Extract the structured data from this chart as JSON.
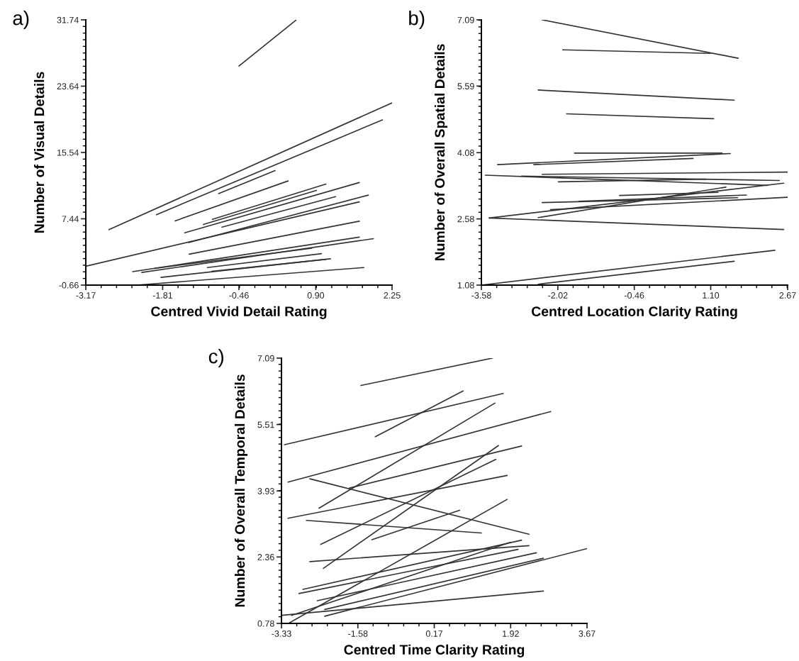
{
  "chart_data": [
    {
      "type": "line",
      "xlabel": "Centred Vivid Detail Rating",
      "ylabel": "Number of Visual Details",
      "annotations": [
        "a)"
      ],
      "color": "#333333",
      "xlim": [
        -3.17,
        2.25
      ],
      "xticks": [
        {
          "value": -3.17,
          "label": "-3.17"
        },
        {
          "value": -1.81,
          "label": "-1.81"
        },
        {
          "value": -0.46,
          "label": "-0.46"
        },
        {
          "value": 0.9,
          "label": "0.90"
        },
        {
          "value": 2.25,
          "label": "2.25"
        }
      ],
      "ylim": [
        -0.66,
        31.74
      ],
      "yticks": [
        {
          "value": -0.66,
          "label": "-0.66"
        },
        {
          "value": 7.44,
          "label": "7.44"
        },
        {
          "value": 15.54,
          "label": "15.54"
        },
        {
          "value": 23.64,
          "label": "23.64"
        },
        {
          "value": 31.74,
          "label": "31.74"
        }
      ],
      "series": [
        {
          "x": [
            -0.46,
            0.55
          ],
          "values": [
            26.1,
            31.7
          ]
        },
        {
          "x": [
            -2.76,
            2.25
          ],
          "values": [
            6.11,
            21.6
          ]
        },
        {
          "x": [
            -1.92,
            2.08
          ],
          "values": [
            7.94,
            19.52
          ]
        },
        {
          "x": [
            -0.82,
            0.18
          ],
          "values": [
            10.52,
            13.32
          ]
        },
        {
          "x": [
            -1.59,
            0.41
          ],
          "values": [
            7.18,
            12.06
          ]
        },
        {
          "x": [
            -0.93,
            1.08
          ],
          "values": [
            7.37,
            11.68
          ]
        },
        {
          "x": [
            -1.09,
            0.91
          ],
          "values": [
            6.74,
            10.9
          ]
        },
        {
          "x": [
            -1.42,
            1.67
          ],
          "values": [
            5.73,
            11.87
          ]
        },
        {
          "x": [
            -0.76,
            1.25
          ],
          "values": [
            6.42,
            10.14
          ]
        },
        {
          "x": [
            -1.35,
            1.83
          ],
          "values": [
            4.54,
            10.33
          ]
        },
        {
          "x": [
            -3.17,
            1.67
          ],
          "values": [
            1.64,
            9.51
          ]
        },
        {
          "x": [
            -1.34,
            1.67
          ],
          "values": [
            3.12,
            7.15
          ]
        },
        {
          "x": [
            -2.34,
            1.67
          ],
          "values": [
            0.98,
            5.2
          ]
        },
        {
          "x": [
            -2.18,
            1.92
          ],
          "values": [
            0.88,
            5.01
          ]
        },
        {
          "x": [
            -1.95,
            0.83
          ],
          "values": [
            1.39,
            3.84
          ]
        },
        {
          "x": [
            -1.02,
            1.0
          ],
          "values": [
            1.48,
            3.18
          ]
        },
        {
          "x": [
            -0.94,
            1.08
          ],
          "values": [
            1.01,
            2.49
          ]
        },
        {
          "x": [
            -1.84,
            1.16
          ],
          "values": [
            0.28,
            2.55
          ]
        },
        {
          "x": [
            -2.27,
            1.75
          ],
          "values": [
            -0.66,
            1.48
          ]
        }
      ]
    },
    {
      "type": "line",
      "xlabel": "Centred Location Clarity Rating",
      "ylabel": "Number of Overall Spatial Details",
      "annotations": [
        "b)"
      ],
      "color": "#333333",
      "xlim": [
        -3.58,
        2.67
      ],
      "xticks": [
        {
          "value": -3.58,
          "label": "-3.58"
        },
        {
          "value": -2.02,
          "label": "-2.02"
        },
        {
          "value": -0.46,
          "label": "-0.46"
        },
        {
          "value": 1.1,
          "label": "1.10"
        },
        {
          "value": 2.67,
          "label": "2.67"
        }
      ],
      "ylim": [
        1.08,
        7.09
      ],
      "yticks": [
        1.08,
        2.58,
        4.08,
        5.59,
        7.09
      ],
      "series": [
        {
          "x": [
            -2.34,
            1.66
          ],
          "values": [
            7.09,
            6.22
          ]
        },
        {
          "x": [
            -1.92,
            1.09
          ],
          "values": [
            6.41,
            6.33
          ]
        },
        {
          "x": [
            -2.42,
            1.58
          ],
          "values": [
            5.5,
            5.27
          ]
        },
        {
          "x": [
            -1.84,
            1.16
          ],
          "values": [
            4.96,
            4.85
          ]
        },
        {
          "x": [
            -1.68,
            1.33
          ],
          "values": [
            4.07,
            4.07
          ]
        },
        {
          "x": [
            -3.25,
            1.5
          ],
          "values": [
            3.81,
            4.06
          ]
        },
        {
          "x": [
            -2.51,
            0.74
          ],
          "values": [
            3.81,
            3.95
          ]
        },
        {
          "x": [
            -3.5,
            2.26
          ],
          "values": [
            3.57,
            3.34
          ]
        },
        {
          "x": [
            -2.34,
            2.67
          ],
          "values": [
            3.59,
            3.64
          ]
        },
        {
          "x": [
            -2.76,
            2.5
          ],
          "values": [
            3.55,
            3.45
          ]
        },
        {
          "x": [
            -2.01,
            1.0
          ],
          "values": [
            3.42,
            3.48
          ]
        },
        {
          "x": [
            -3.42,
            2.59
          ],
          "values": [
            2.6,
            3.39
          ]
        },
        {
          "x": [
            -2.42,
            1.41
          ],
          "values": [
            2.61,
            3.3
          ]
        },
        {
          "x": [
            -2.34,
            1.65
          ],
          "values": [
            2.95,
            3.06
          ]
        },
        {
          "x": [
            -0.76,
            1.25
          ],
          "values": [
            3.11,
            3.18
          ]
        },
        {
          "x": [
            -1.59,
            1.83
          ],
          "values": [
            2.98,
            3.12
          ]
        },
        {
          "x": [
            -2.17,
            2.67
          ],
          "values": [
            2.79,
            3.07
          ]
        },
        {
          "x": [
            -3.42,
            2.59
          ],
          "values": [
            2.6,
            2.34
          ]
        },
        {
          "x": [
            -3.58,
            2.41
          ],
          "values": [
            1.08,
            1.87
          ]
        },
        {
          "x": [
            -2.42,
            1.58
          ],
          "values": [
            1.1,
            1.62
          ]
        }
      ]
    },
    {
      "type": "line",
      "xlabel": "Centred Time Clarity Rating",
      "ylabel": "Number of Overall Temporal Details",
      "annotations": [
        "c)"
      ],
      "color": "#333333",
      "xlim": [
        -3.33,
        3.67
      ],
      "xticks": [
        {
          "value": -3.33,
          "label": "-3.33"
        },
        {
          "value": -1.58,
          "label": "-1.58"
        },
        {
          "value": 0.17,
          "label": "0.17"
        },
        {
          "value": 1.92,
          "label": "1.92"
        },
        {
          "value": 3.67,
          "label": "3.67"
        }
      ],
      "ylim": [
        0.78,
        7.09
      ],
      "yticks": [
        0.78,
        2.36,
        3.93,
        5.51,
        7.09
      ],
      "series": [
        {
          "x": [
            -1.51,
            1.5
          ],
          "values": [
            6.44,
            7.09
          ]
        },
        {
          "x": [
            -3.26,
            1.75
          ],
          "values": [
            5.03,
            6.25
          ]
        },
        {
          "x": [
            -1.18,
            0.83
          ],
          "values": [
            5.22,
            6.31
          ]
        },
        {
          "x": [
            -2.47,
            1.56
          ],
          "values": [
            3.52,
            6.02
          ]
        },
        {
          "x": [
            -3.18,
            2.84
          ],
          "values": [
            4.14,
            5.82
          ]
        },
        {
          "x": [
            -1.77,
            2.17
          ],
          "values": [
            4.0,
            5.0
          ]
        },
        {
          "x": [
            -2.43,
            1.58
          ],
          "values": [
            2.66,
            4.68
          ]
        },
        {
          "x": [
            -2.37,
            1.64
          ],
          "values": [
            2.09,
            5.01
          ]
        },
        {
          "x": [
            -3.18,
            1.84
          ],
          "values": [
            3.28,
            4.3
          ]
        },
        {
          "x": [
            -2.68,
            2.34
          ],
          "values": [
            4.22,
            2.9
          ]
        },
        {
          "x": [
            -2.76,
            1.25
          ],
          "values": [
            3.23,
            2.93
          ]
        },
        {
          "x": [
            -1.26,
            0.75
          ],
          "values": [
            2.77,
            3.47
          ]
        },
        {
          "x": [
            -3.17,
            1.84
          ],
          "values": [
            0.78,
            3.73
          ]
        },
        {
          "x": [
            -2.68,
            2.34
          ],
          "values": [
            2.25,
            2.63
          ]
        },
        {
          "x": [
            -2.84,
            2.17
          ],
          "values": [
            1.59,
            2.76
          ]
        },
        {
          "x": [
            -2.93,
            2.09
          ],
          "values": [
            1.49,
            2.54
          ]
        },
        {
          "x": [
            -3.1,
            1.92
          ],
          "values": [
            0.97,
            2.71
          ]
        },
        {
          "x": [
            -2.51,
            2.51
          ],
          "values": [
            1.32,
            2.46
          ]
        },
        {
          "x": [
            -2.34,
            2.67
          ],
          "values": [
            1.11,
            2.33
          ]
        },
        {
          "x": [
            -2.34,
            3.67
          ],
          "values": [
            0.95,
            2.56
          ]
        },
        {
          "x": [
            -3.33,
            2.67
          ],
          "values": [
            0.97,
            1.55
          ]
        }
      ]
    }
  ]
}
